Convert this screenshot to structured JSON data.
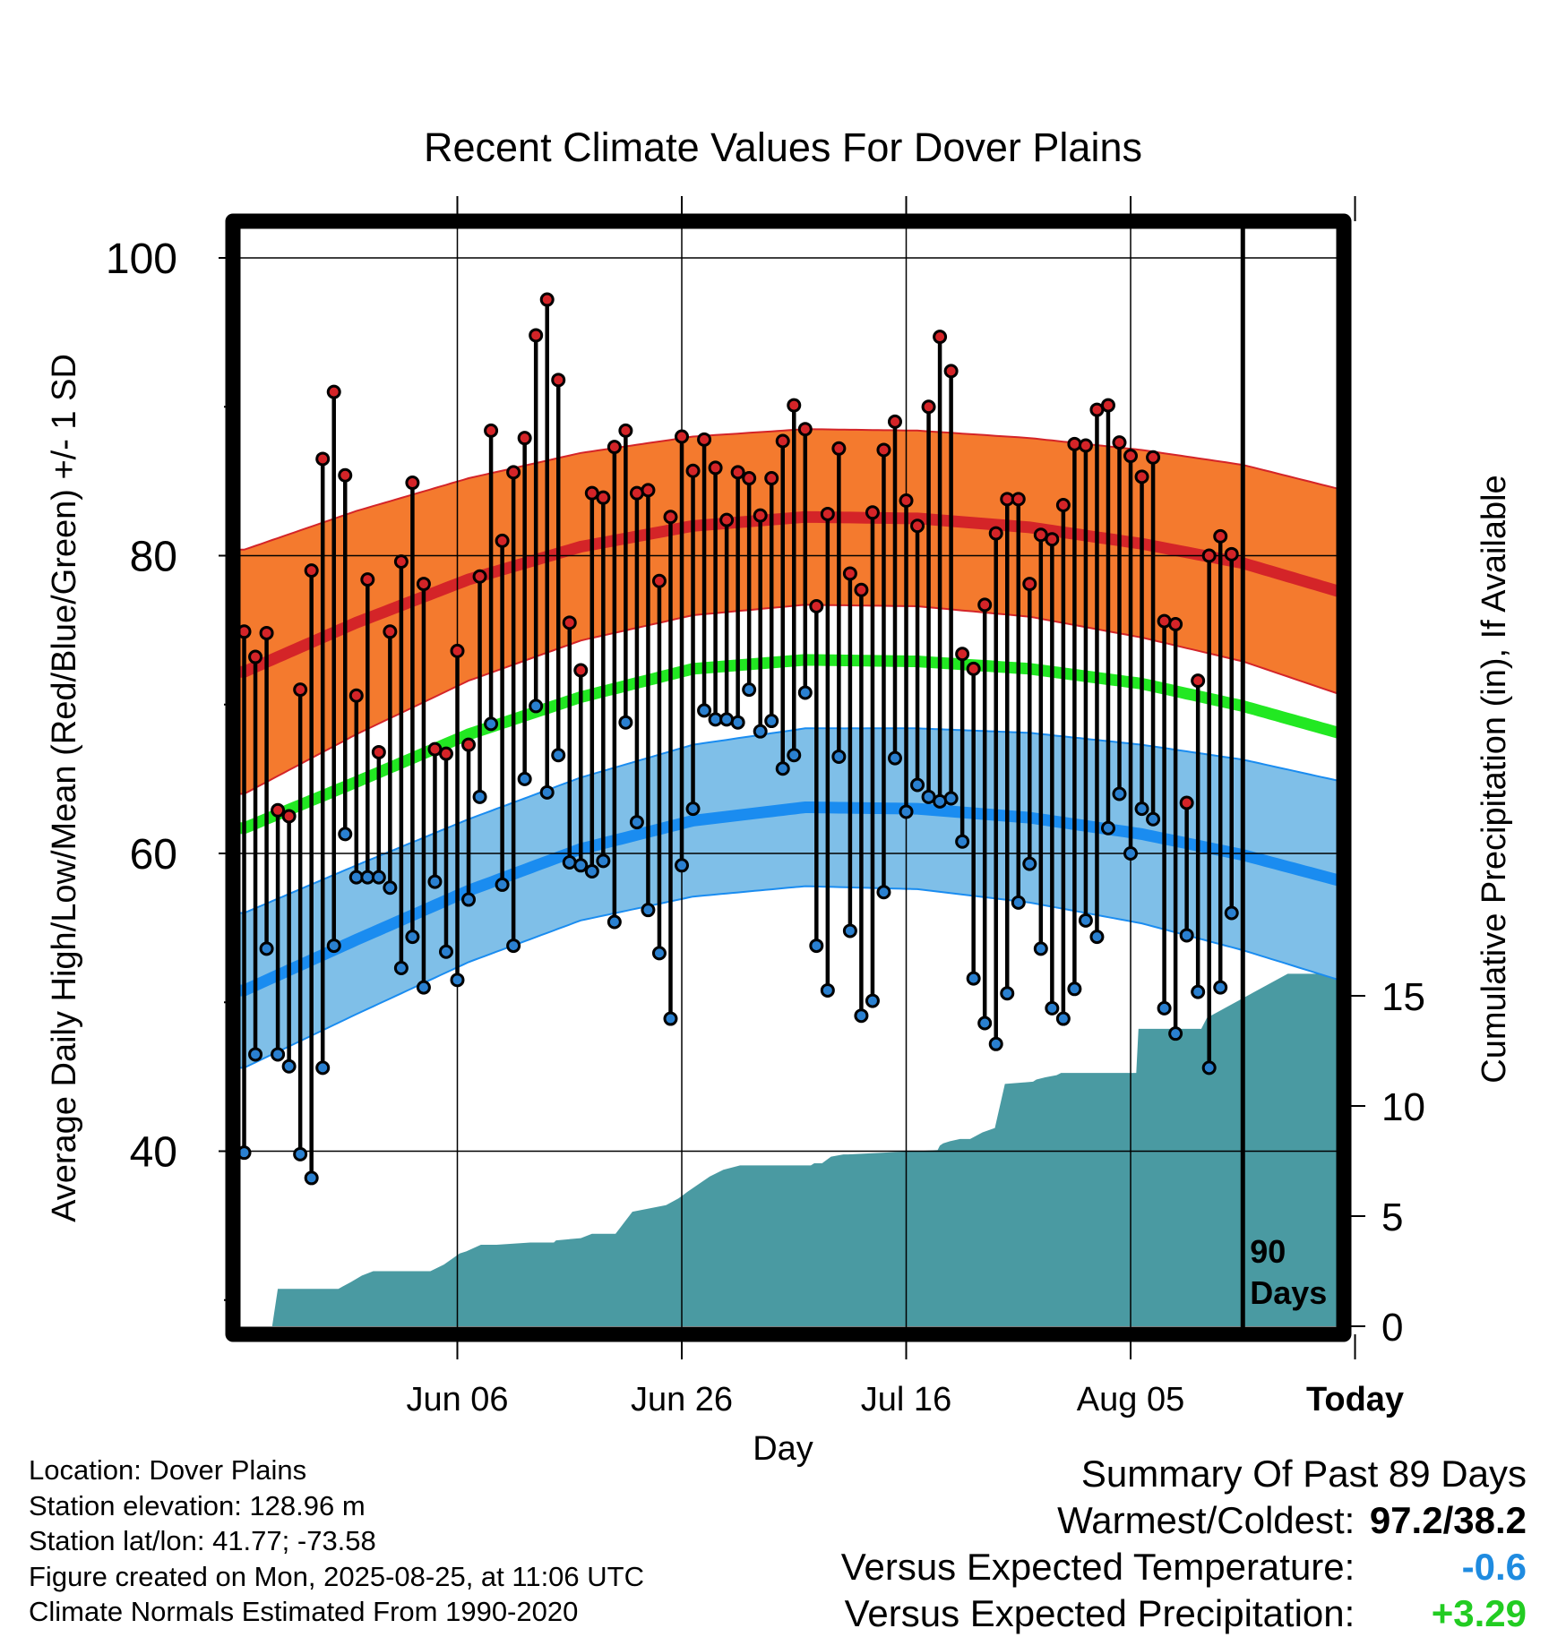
{
  "chart_data": {
    "type": "line",
    "title": "Recent Climate Values For Dover Plains",
    "xlabel": "Day",
    "ylabel": "Average Daily High/Low/Mean (Red/Blue/Green) +/- 1 SD",
    "y2label": "Cumulative Precipitation (in), If Available",
    "x_ticks": [
      "Jun 06",
      "Jun 26",
      "Jul 16",
      "Aug 05",
      "Today"
    ],
    "y_ticks": [
      40,
      60,
      80,
      100
    ],
    "y2_ticks": [
      0,
      5,
      10,
      15
    ],
    "ylim": [
      28.5,
      102.5
    ],
    "y2lim": [
      0,
      16
    ],
    "xlim_days_ago": [
      90,
      -9
    ],
    "marker_label": "90\nDays",
    "grid": true,
    "colors": {
      "high_band": "#f47a2e",
      "high_line": "#d42428",
      "mean_line": "#22e822",
      "low_band": "#7fbfe8",
      "low_line": "#1a8cf0",
      "precip": "#4a9aa2",
      "high_dot": "#d42428",
      "low_dot": "#2a80d0"
    },
    "normals": {
      "days_ago": [
        89,
        79,
        69,
        59,
        49,
        39,
        29,
        19,
        9,
        0,
        -9
      ],
      "high": [
        72.2,
        75.5,
        78.4,
        80.6,
        82.0,
        82.6,
        82.5,
        81.9,
        80.8,
        79.5,
        77.5
      ],
      "high_sd": [
        8.2,
        7.5,
        6.8,
        6.3,
        6.0,
        5.9,
        5.9,
        6.0,
        6.3,
        6.6,
        6.9
      ],
      "low": [
        50.8,
        54.2,
        57.5,
        60.3,
        62.2,
        63.1,
        63.0,
        62.4,
        61.3,
        59.9,
        58.1
      ],
      "low_sd": [
        5.2,
        5.0,
        4.8,
        4.8,
        5.1,
        5.3,
        5.4,
        5.7,
        6.0,
        6.4,
        6.7
      ],
      "mean": [
        61.7,
        64.8,
        68.0,
        70.5,
        72.4,
        73.0,
        72.9,
        72.4,
        71.4,
        69.9,
        68.0
      ]
    },
    "highs": [
      74.9,
      73.2,
      74.8,
      62.9,
      62.5,
      71.0,
      79.0,
      86.5,
      91.0,
      85.4,
      70.6,
      78.4,
      66.8,
      74.9,
      79.6,
      84.9,
      78.1,
      67.0,
      66.7,
      73.6,
      67.3,
      78.6,
      88.4,
      81.0,
      85.6,
      87.9,
      94.8,
      97.2,
      91.8,
      75.5,
      72.3,
      84.2,
      83.9,
      87.3,
      88.4,
      84.2,
      84.4,
      78.3,
      82.6,
      88.0,
      85.7,
      87.8,
      85.9,
      82.4,
      85.6,
      85.2,
      82.7,
      85.2,
      87.7,
      90.1,
      88.5,
      76.6,
      82.8,
      87.2,
      78.8,
      77.7,
      82.9,
      87.1,
      89.0,
      83.7,
      82.0,
      90.0,
      94.7,
      92.4,
      73.4,
      72.4,
      76.7,
      81.5,
      83.8,
      83.8,
      78.1,
      81.4,
      81.1,
      83.4,
      87.5,
      87.4,
      89.8,
      90.1,
      87.6,
      86.7,
      85.3,
      86.6,
      75.6,
      75.4,
      63.4,
      71.6,
      80.0,
      81.3,
      80.1
    ],
    "lows": [
      39.9,
      46.5,
      53.6,
      46.5,
      45.7,
      39.8,
      38.2,
      45.6,
      53.8,
      61.3,
      58.4,
      58.4,
      58.4,
      57.7,
      52.3,
      54.4,
      51.0,
      58.1,
      53.4,
      51.5,
      56.9,
      63.8,
      68.7,
      57.9,
      53.8,
      65.0,
      69.9,
      64.1,
      66.6,
      59.4,
      59.2,
      58.8,
      59.5,
      55.4,
      68.8,
      62.1,
      56.2,
      53.3,
      48.9,
      59.2,
      63.0,
      69.6,
      69.0,
      69.0,
      68.8,
      71.0,
      68.2,
      68.9,
      65.7,
      66.6,
      70.8,
      53.8,
      50.8,
      66.5,
      54.8,
      49.1,
      50.1,
      57.4,
      66.4,
      62.8,
      64.6,
      63.8,
      63.5,
      63.7,
      60.8,
      51.6,
      48.6,
      47.2,
      50.6,
      56.7,
      59.3,
      53.6,
      49.6,
      48.9,
      50.9,
      55.5,
      54.4,
      61.7,
      64.0,
      60.0,
      63.0,
      62.3,
      49.6,
      47.9,
      54.5,
      50.7,
      45.6,
      51.0,
      56.0
    ],
    "precip_days_ago": [
      90,
      86.5,
      86,
      80.6,
      79.5,
      78.5,
      77.5,
      76.2,
      72.4,
      71.2,
      69.8,
      69.2,
      67.9,
      66.5,
      63.5,
      61.4,
      61.2,
      59.0,
      58.0,
      55.9,
      54.4,
      51.4,
      50.3,
      49.5,
      47.5,
      46.3,
      44.8,
      38.5,
      38.2,
      37.5,
      36.7,
      35.6,
      35.2,
      27.2,
      27.0,
      26.7,
      26.1,
      25.2,
      24.3,
      23.2,
      22.1,
      21.2,
      18.7,
      18.4,
      17.6,
      16.6,
      16.2,
      15.1,
      9.5,
      9.3,
      3.7,
      3.2,
      -4.0,
      -4.3,
      -9
    ],
    "precip_in": [
      0,
      0,
      1.7,
      1.7,
      2.0,
      2.3,
      2.5,
      2.5,
      2.5,
      2.8,
      3.3,
      3.4,
      3.7,
      3.7,
      3.8,
      3.8,
      3.9,
      4.0,
      4.2,
      4.2,
      5.2,
      5.5,
      5.8,
      6.1,
      6.8,
      7.1,
      7.3,
      7.3,
      7.4,
      7.4,
      7.7,
      7.8,
      7.8,
      8.0,
      8.2,
      8.3,
      8.4,
      8.5,
      8.5,
      8.8,
      9.0,
      11.0,
      11.1,
      11.2,
      11.3,
      11.4,
      11.5,
      11.5,
      11.5,
      13.5,
      13.5,
      14.0,
      16.0,
      16.0,
      16.0
    ]
  },
  "info": {
    "location": "Location: Dover Plains",
    "elevation": "Station elevation: 128.96 m",
    "latlon": "Station lat/lon: 41.77; -73.58",
    "created": "Figure created on Mon, 2025-08-25, at 11:06 UTC",
    "normals": "Climate Normals Estimated From 1990-2020"
  },
  "summary": {
    "title": "Summary Of Past 89 Days",
    "warm_cold_label": "Warmest/Coldest:",
    "warm_cold_value": "97.2/38.2",
    "temp_label": "Versus Expected Temperature:",
    "temp_value": "-0.6",
    "prec_label": "Versus Expected Precipitation:",
    "prec_value": "+3.29"
  }
}
